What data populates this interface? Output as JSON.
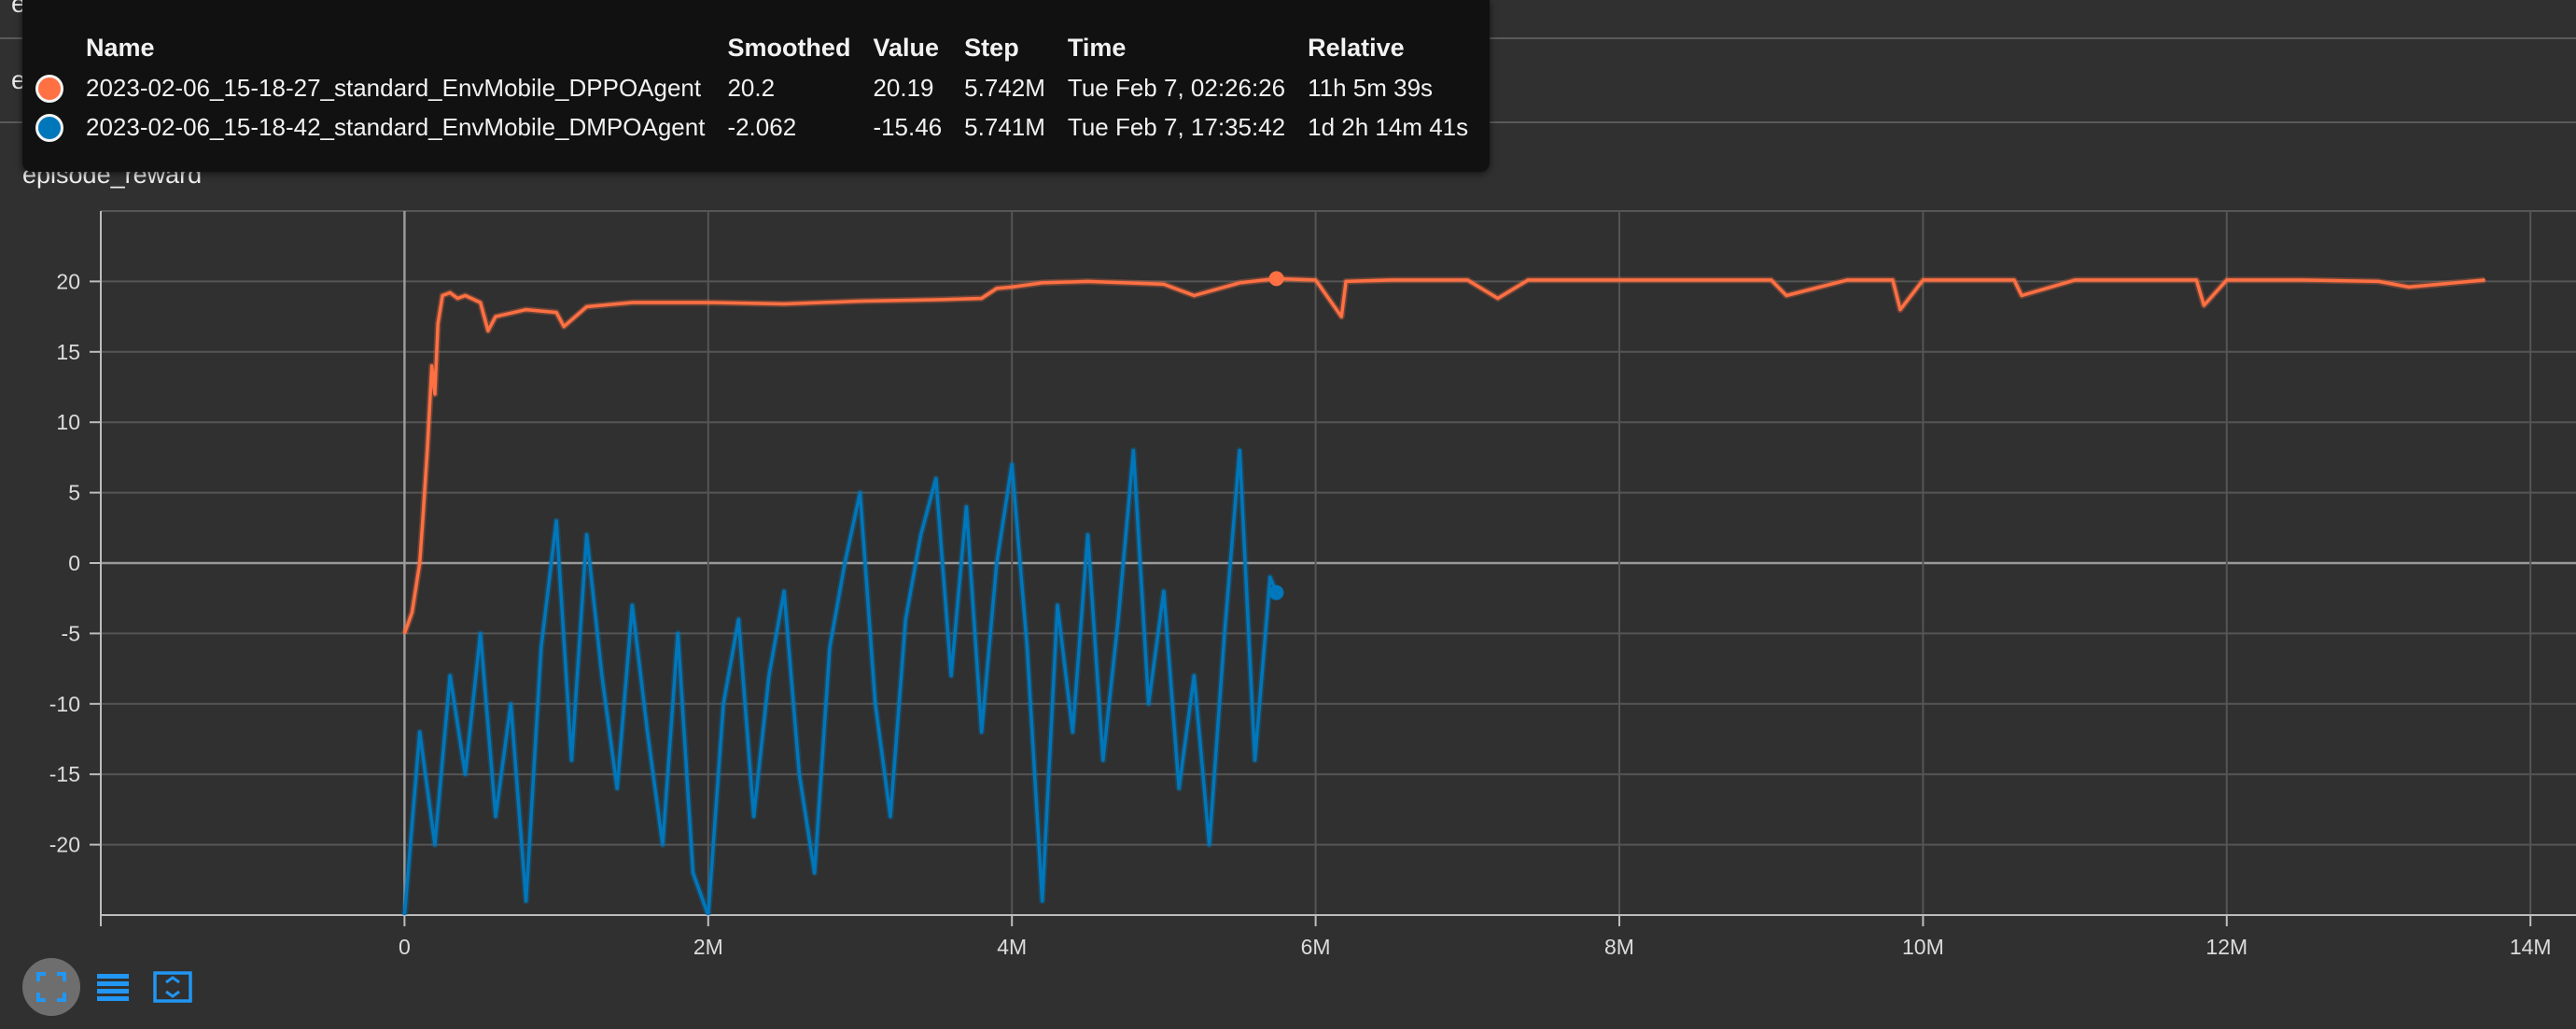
{
  "background_rows": [
    "episode_len",
    "episode_reward"
  ],
  "chart_title": "episode_reward",
  "tooltip": {
    "headers": [
      "Name",
      "Smoothed",
      "Value",
      "Step",
      "Time",
      "Relative"
    ],
    "rows": [
      {
        "color": "#ff7043",
        "name": "2023-02-06_15-18-27_standard_EnvMobile_DPPOAgent",
        "smoothed": "20.2",
        "value": "20.19",
        "step": "5.742M",
        "time": "Tue Feb 7, 02:26:26",
        "relative": "11h 5m 39s"
      },
      {
        "color": "#0077bb",
        "name": "2023-02-06_15-18-42_standard_EnvMobile_DMPOAgent",
        "smoothed": "-2.062",
        "value": "-15.46",
        "step": "5.741M",
        "time": "Tue Feb 7, 17:35:42",
        "relative": "1d 2h 14m 41s"
      }
    ]
  },
  "toolbar": {
    "icons": [
      "fullscreen-icon",
      "log-scale-icon",
      "fit-domain-icon"
    ]
  },
  "chart_data": {
    "type": "line",
    "title": "episode_reward",
    "xlabel": "",
    "ylabel": "",
    "xlim": [
      -2000000,
      14300000
    ],
    "ylim": [
      -25,
      25
    ],
    "x_ticks": [
      0,
      2000000,
      4000000,
      6000000,
      8000000,
      10000000,
      12000000,
      14000000
    ],
    "x_tick_labels": [
      "0",
      "2M",
      "4M",
      "6M",
      "8M",
      "10M",
      "12M",
      "14M"
    ],
    "y_ticks": [
      20,
      15,
      10,
      5,
      0,
      -5,
      -10,
      -15,
      -20
    ],
    "y_tick_labels": [
      "20",
      "15",
      "10",
      "5",
      "0",
      "-5",
      "-10",
      "-15",
      "-20"
    ],
    "grid": true,
    "series": [
      {
        "name": "2023-02-06_15-18-27_standard_EnvMobile_DPPOAgent",
        "color": "#ff7043",
        "x": [
          0,
          50000,
          100000,
          120000,
          150000,
          180000,
          200000,
          220000,
          250000,
          300000,
          350000,
          400000,
          500000,
          550000,
          600000,
          800000,
          1000000,
          1050000,
          1200000,
          1500000,
          2000000,
          2500000,
          3000000,
          3500000,
          3800000,
          3900000,
          4000000,
          4200000,
          4500000,
          5000000,
          5200000,
          5500000,
          5742000,
          6000000,
          6170000,
          6200000,
          6500000,
          7000000,
          7200000,
          7400000,
          8000000,
          9000000,
          9100000,
          9500000,
          9800000,
          9850000,
          10000000,
          10600000,
          10650000,
          11000000,
          11800000,
          11850000,
          12000000,
          12500000,
          13000000,
          13200000,
          13700000
        ],
        "y": [
          -5,
          -3.5,
          0,
          3,
          8,
          14,
          12,
          17,
          19,
          19.2,
          18.8,
          19,
          18.5,
          16.5,
          17.5,
          18,
          17.8,
          16.8,
          18.2,
          18.5,
          18.5,
          18.4,
          18.6,
          18.7,
          18.8,
          19.5,
          19.6,
          19.9,
          20,
          19.8,
          19,
          19.9,
          20.2,
          20.1,
          17.5,
          20,
          20.1,
          20.1,
          18.8,
          20.1,
          20.1,
          20.1,
          19,
          20.1,
          20.1,
          18,
          20.1,
          20.1,
          19,
          20.1,
          20.1,
          18.3,
          20.1,
          20.1,
          20,
          19.6,
          20.1
        ]
      },
      {
        "name": "2023-02-06_15-18-42_standard_EnvMobile_DMPOAgent",
        "color": "#0077bb",
        "x": [
          0,
          100000,
          200000,
          300000,
          400000,
          500000,
          600000,
          700000,
          800000,
          900000,
          1000000,
          1100000,
          1200000,
          1300000,
          1400000,
          1500000,
          1600000,
          1700000,
          1800000,
          1900000,
          2000000,
          2100000,
          2200000,
          2300000,
          2400000,
          2500000,
          2600000,
          2700000,
          2800000,
          2900000,
          3000000,
          3100000,
          3200000,
          3300000,
          3400000,
          3500000,
          3600000,
          3700000,
          3800000,
          3900000,
          4000000,
          4100000,
          4200000,
          4300000,
          4400000,
          4500000,
          4600000,
          4700000,
          4800000,
          4900000,
          5000000,
          5100000,
          5200000,
          5300000,
          5400000,
          5500000,
          5600000,
          5700000,
          5741000
        ],
        "y": [
          -25,
          -12,
          -20,
          -8,
          -15,
          -5,
          -18,
          -10,
          -24,
          -6,
          3,
          -14,
          2,
          -8,
          -16,
          -3,
          -12,
          -20,
          -5,
          -22,
          -25,
          -10,
          -4,
          -18,
          -8,
          -2,
          -15,
          -22,
          -6,
          0,
          5,
          -10,
          -18,
          -4,
          2,
          6,
          -8,
          4,
          -12,
          0,
          7,
          -6,
          -24,
          -3,
          -12,
          2,
          -14,
          -4,
          8,
          -10,
          -2,
          -16,
          -8,
          -20,
          -5,
          8,
          -14,
          -1,
          -2.1
        ]
      }
    ]
  }
}
